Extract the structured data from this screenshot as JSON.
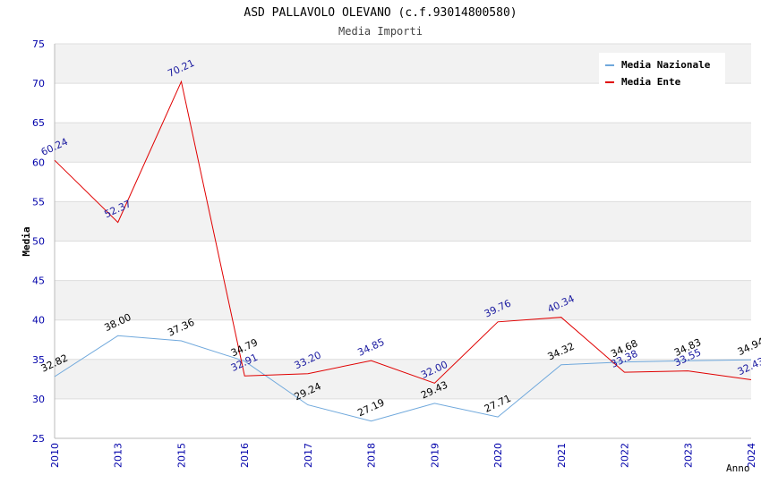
{
  "chart_data": {
    "type": "line",
    "title": "ASD PALLAVOLO OLEVANO (c.f.93014800580)",
    "subtitle": "Media Importi",
    "ylabel": "Media",
    "xlabel": "Anno",
    "ylim": [
      25,
      75
    ],
    "yticks": [
      "25",
      "30",
      "35",
      "40",
      "45",
      "50",
      "55",
      "60",
      "65",
      "70",
      "75"
    ],
    "categories": [
      "2010",
      "2013",
      "2015",
      "2016",
      "2017",
      "2018",
      "2019",
      "2020",
      "2021",
      "2022",
      "2023",
      "2024"
    ],
    "grid": true,
    "legend_position": "top-right",
    "series": [
      {
        "name": "Media Nazionale",
        "color": "#6fa8dc",
        "label_color": "#000000",
        "values": [
          32.82,
          38.0,
          37.36,
          34.79,
          29.24,
          27.19,
          29.43,
          27.71,
          34.32,
          34.68,
          34.83,
          34.94
        ],
        "labels": [
          "32.82",
          "38.00",
          "37.36",
          "34.79",
          "29.24",
          "27.19",
          "29.43",
          "27.71",
          "34.32",
          "34.68",
          "34.83",
          "34.94"
        ]
      },
      {
        "name": "Media Ente",
        "color": "#e00000",
        "label_color": "#1a1aa0",
        "values": [
          60.24,
          52.37,
          70.21,
          32.91,
          33.2,
          34.85,
          32.0,
          39.76,
          40.34,
          33.38,
          33.55,
          32.43
        ],
        "labels": [
          "60.24",
          "52.37",
          "70.21",
          "32.91",
          "33.20",
          "34.85",
          "32.00",
          "39.76",
          "40.34",
          "33.38",
          "33.55",
          "32.43"
        ]
      }
    ],
    "colors": {
      "tick_label": "#0000aa",
      "band": "#f2f2f2",
      "grid": "#dddddd"
    }
  }
}
